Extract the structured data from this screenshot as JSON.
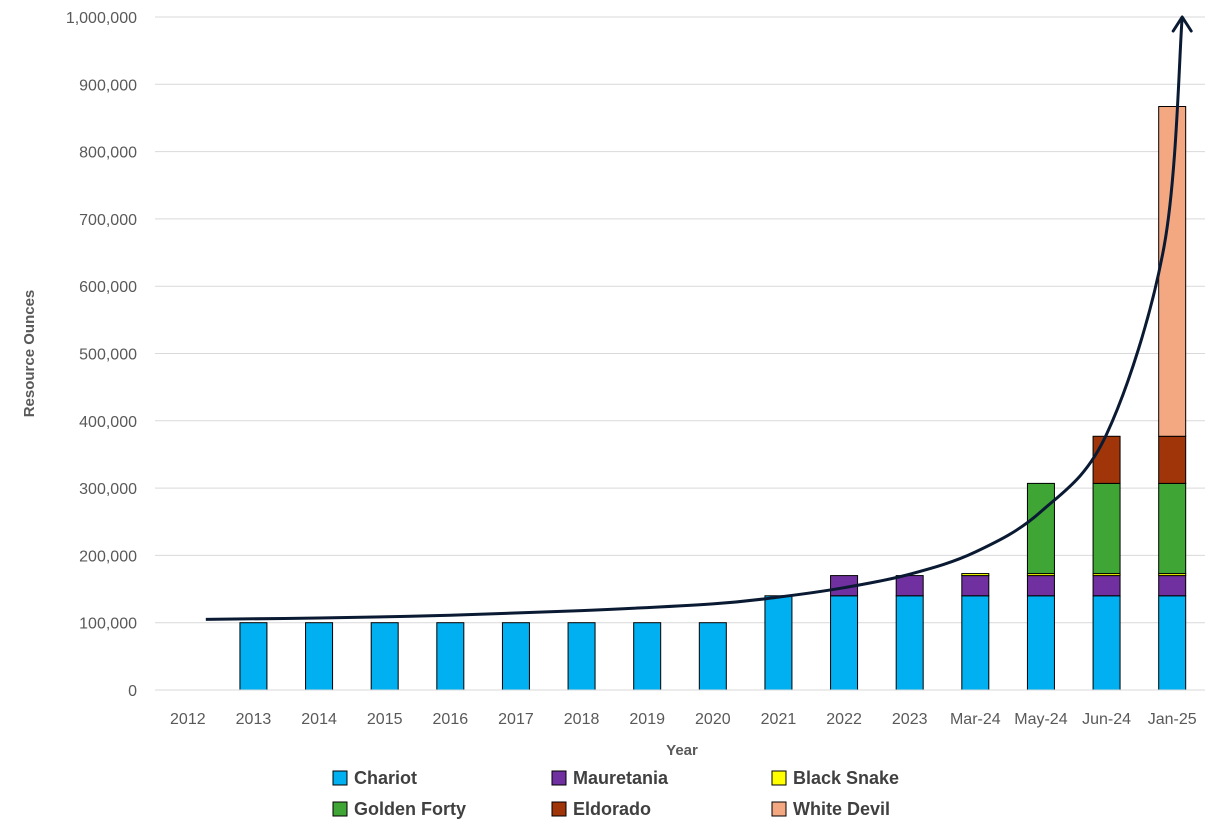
{
  "chart_data": {
    "type": "bar",
    "stacked": true,
    "xlabel": "Year",
    "ylabel": "Resource Ounces",
    "ylim": [
      0,
      1000000
    ],
    "yticks": [
      0,
      100000,
      200000,
      300000,
      400000,
      500000,
      600000,
      700000,
      800000,
      900000,
      1000000
    ],
    "ytick_labels": [
      "0",
      "100,000",
      "200,000",
      "300,000",
      "400,000",
      "500,000",
      "600,000",
      "700,000",
      "800,000",
      "900,000",
      "1,000,000"
    ],
    "grid": "horizontal",
    "legend_position": "bottom",
    "categories": [
      "2012",
      "2013",
      "2014",
      "2015",
      "2016",
      "2017",
      "2018",
      "2019",
      "2020",
      "2021",
      "2022",
      "2023",
      "Mar-24",
      "May-24",
      "Jun-24",
      "Jan-25"
    ],
    "series": [
      {
        "name": "Chariot",
        "color": "#00B0F0",
        "values": [
          0,
          100000,
          100000,
          100000,
          100000,
          100000,
          100000,
          100000,
          100000,
          140000,
          140000,
          140000,
          140000,
          140000,
          140000,
          140000
        ]
      },
      {
        "name": "Mauretania",
        "color": "#7030A0",
        "values": [
          0,
          0,
          0,
          0,
          0,
          0,
          0,
          0,
          0,
          0,
          30000,
          30000,
          30000,
          30000,
          30000,
          30000
        ]
      },
      {
        "name": "Black Snake",
        "color": "#FFFF00",
        "values": [
          0,
          0,
          0,
          0,
          0,
          0,
          0,
          0,
          0,
          0,
          0,
          0,
          3000,
          3000,
          3000,
          3000
        ]
      },
      {
        "name": "Golden Forty",
        "color": "#3FA535",
        "values": [
          0,
          0,
          0,
          0,
          0,
          0,
          0,
          0,
          0,
          0,
          0,
          0,
          0,
          134000,
          134000,
          134000
        ]
      },
      {
        "name": "Eldorado",
        "color": "#A0350A",
        "values": [
          0,
          0,
          0,
          0,
          0,
          0,
          0,
          0,
          0,
          0,
          0,
          0,
          0,
          0,
          70000,
          70000
        ]
      },
      {
        "name": "White Devil",
        "color": "#F4A882",
        "values": [
          0,
          0,
          0,
          0,
          0,
          0,
          0,
          0,
          0,
          0,
          0,
          0,
          0,
          0,
          0,
          490000
        ]
      }
    ],
    "trend_curve": {
      "description_shown": "arrow curve",
      "points": [
        [
          "2012",
          105000
        ],
        [
          "2014",
          107000
        ],
        [
          "2016",
          111000
        ],
        [
          "2018",
          118000
        ],
        [
          "2020",
          128000
        ],
        [
          "2021",
          138000
        ],
        [
          "2022",
          152000
        ],
        [
          "2023",
          172000
        ],
        [
          "Mar-24",
          205000
        ],
        [
          "May-24",
          265000
        ],
        [
          "Jun-24",
          380000
        ],
        [
          "Jan-25",
          660000
        ],
        [
          "Jan-25",
          1000000
        ]
      ]
    }
  }
}
